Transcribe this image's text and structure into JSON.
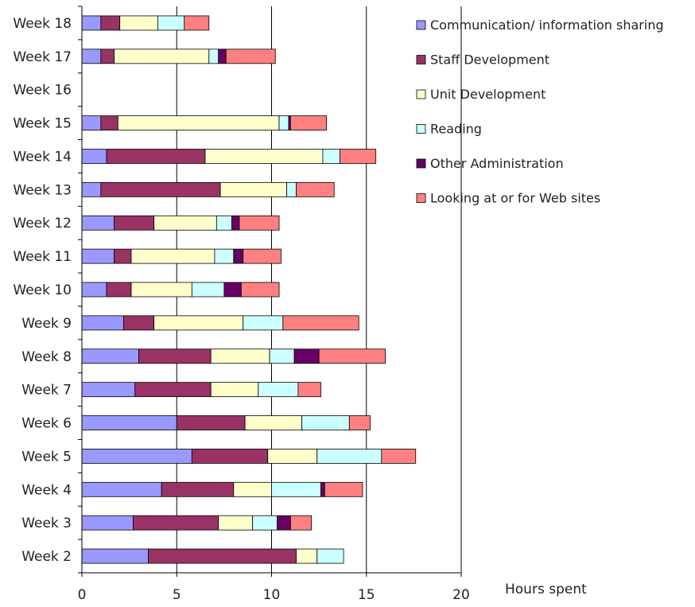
{
  "chart_data": {
    "type": "bar",
    "orientation": "horizontal",
    "stacked": true,
    "title": "",
    "xlabel": "Hours spent",
    "ylabel": "",
    "xlim": [
      0,
      20
    ],
    "x_ticks": [
      0,
      5,
      10,
      15,
      20
    ],
    "grid": "vertical major gridlines",
    "legend_position": "right",
    "categories": [
      "Week 18",
      "Week 17",
      "Week 16",
      "Week 15",
      "Week 14",
      "Week 13",
      "Week 12",
      "Week 11",
      "Week 10",
      "Week 9",
      "Week 8",
      "Week 7",
      "Week 6",
      "Week 5",
      "Week 4",
      "Week 3",
      "Week 2"
    ],
    "series": [
      {
        "name": "Communication/ information sharing",
        "color": "#9999ff",
        "values": [
          1.0,
          1.0,
          0,
          1.0,
          1.3,
          1.0,
          1.7,
          1.7,
          1.3,
          2.2,
          3.0,
          2.8,
          5.0,
          5.8,
          4.2,
          2.7,
          3.5
        ]
      },
      {
        "name": "Staff Development",
        "color": "#993366",
        "values": [
          1.0,
          0.7,
          0,
          0.9,
          5.2,
          6.3,
          2.1,
          0.9,
          1.3,
          1.6,
          3.8,
          4.0,
          3.6,
          4.0,
          3.8,
          4.5,
          7.8
        ]
      },
      {
        "name": "Unit Development",
        "color": "#ffffcc",
        "values": [
          2.0,
          5.0,
          0,
          8.5,
          6.2,
          3.5,
          3.3,
          4.4,
          3.2,
          4.7,
          3.1,
          2.5,
          3.0,
          2.6,
          2.0,
          1.8,
          1.1
        ]
      },
      {
        "name": "Reading",
        "color": "#ccffff",
        "values": [
          1.4,
          0.5,
          0,
          0.5,
          0.9,
          0.5,
          0.8,
          1.0,
          1.7,
          2.1,
          1.3,
          2.1,
          2.5,
          3.4,
          2.6,
          1.3,
          1.4
        ]
      },
      {
        "name": "Other Administration",
        "color": "#660066",
        "values": [
          0,
          0.4,
          0,
          0.1,
          0,
          0,
          0.4,
          0.5,
          0.9,
          0,
          1.3,
          0,
          0,
          0,
          0.2,
          0.7,
          0
        ]
      },
      {
        "name": "Looking at or for Web sites",
        "color": "#ff8080",
        "values": [
          1.3,
          2.6,
          0,
          1.9,
          1.9,
          2.0,
          2.1,
          2.0,
          2.0,
          4.0,
          3.5,
          1.2,
          1.1,
          1.8,
          2.0,
          1.1,
          0
        ]
      }
    ]
  }
}
